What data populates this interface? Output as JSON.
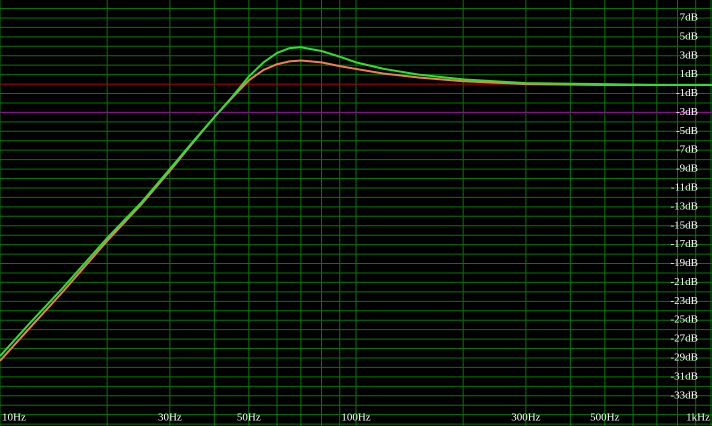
{
  "chart_data": {
    "type": "line",
    "xscale": "log",
    "xlim": [
      10,
      1000
    ],
    "ylim": [
      8.9,
      -36.2
    ],
    "xticks": [
      {
        "value": 10,
        "label": "10Hz"
      },
      {
        "value": 30,
        "label": "30Hz"
      },
      {
        "value": 50,
        "label": "50Hz"
      },
      {
        "value": 100,
        "label": "100Hz"
      },
      {
        "value": 300,
        "label": "300Hz"
      },
      {
        "value": 500,
        "label": "500Hz"
      },
      {
        "value": 1000,
        "label": "1kHz"
      }
    ],
    "x_minor_ticks": [
      20,
      40,
      60,
      70,
      80,
      90,
      200,
      400,
      600,
      700,
      800,
      900
    ],
    "yticks": [
      {
        "value": 7,
        "label": "7dB"
      },
      {
        "value": 5,
        "label": "5dB"
      },
      {
        "value": 3,
        "label": "3dB"
      },
      {
        "value": 1,
        "label": "1dB"
      },
      {
        "value": -1,
        "label": "-1dB"
      },
      {
        "value": -3,
        "label": "-3dB"
      },
      {
        "value": -5,
        "label": "-5dB"
      },
      {
        "value": -7,
        "label": "-7dB"
      },
      {
        "value": -9,
        "label": "-9dB"
      },
      {
        "value": -11,
        "label": "-11dB"
      },
      {
        "value": -13,
        "label": "-13dB"
      },
      {
        "value": -15,
        "label": "-15dB"
      },
      {
        "value": -17,
        "label": "-17dB"
      },
      {
        "value": -19,
        "label": "-19dB"
      },
      {
        "value": -21,
        "label": "-21dB"
      },
      {
        "value": -23,
        "label": "-23dB"
      },
      {
        "value": -25,
        "label": "-25dB"
      },
      {
        "value": -27,
        "label": "-27dB"
      },
      {
        "value": -29,
        "label": "-29dB"
      },
      {
        "value": -31,
        "label": "-31dB"
      },
      {
        "value": -33,
        "label": "-33dB"
      }
    ],
    "y_minor_ticks": [
      8,
      6,
      4,
      2,
      -2,
      -4,
      -6,
      -8,
      -10,
      -12,
      -14,
      -16,
      -18,
      -20,
      -22,
      -24,
      -26,
      -28,
      -30,
      -32,
      -34,
      -35,
      -36
    ],
    "grid": true,
    "grid_color": "#007a00",
    "reference_lines": [
      {
        "value": 0,
        "color": "#c00000"
      },
      {
        "value": -3,
        "color": "#a000a0"
      }
    ],
    "x": [
      10,
      12,
      15,
      20,
      25,
      30,
      35,
      40,
      45,
      50,
      55,
      60,
      65,
      70,
      80,
      90,
      100,
      120,
      150,
      200,
      300,
      500,
      700,
      1000
    ],
    "series": [
      {
        "color": "#f08050",
        "values": [
          -29.3,
          -26,
          -22,
          -16.6,
          -12.7,
          -9.2,
          -6.1,
          -3.5,
          -1.4,
          0.4,
          1.5,
          2.1,
          2.4,
          2.5,
          2.3,
          1.9,
          1.6,
          1.1,
          0.7,
          0.3,
          0.0,
          -0.1,
          -0.1,
          -0.1
        ]
      },
      {
        "color": "#30e030",
        "values": [
          -28.8,
          -25.5,
          -21.6,
          -16.3,
          -12.5,
          -9.0,
          -6.0,
          -3.5,
          -1.3,
          0.8,
          2.3,
          3.3,
          3.8,
          3.9,
          3.5,
          2.9,
          2.3,
          1.6,
          1.0,
          0.5,
          0.1,
          0.0,
          -0.1,
          -0.1
        ]
      }
    ]
  }
}
